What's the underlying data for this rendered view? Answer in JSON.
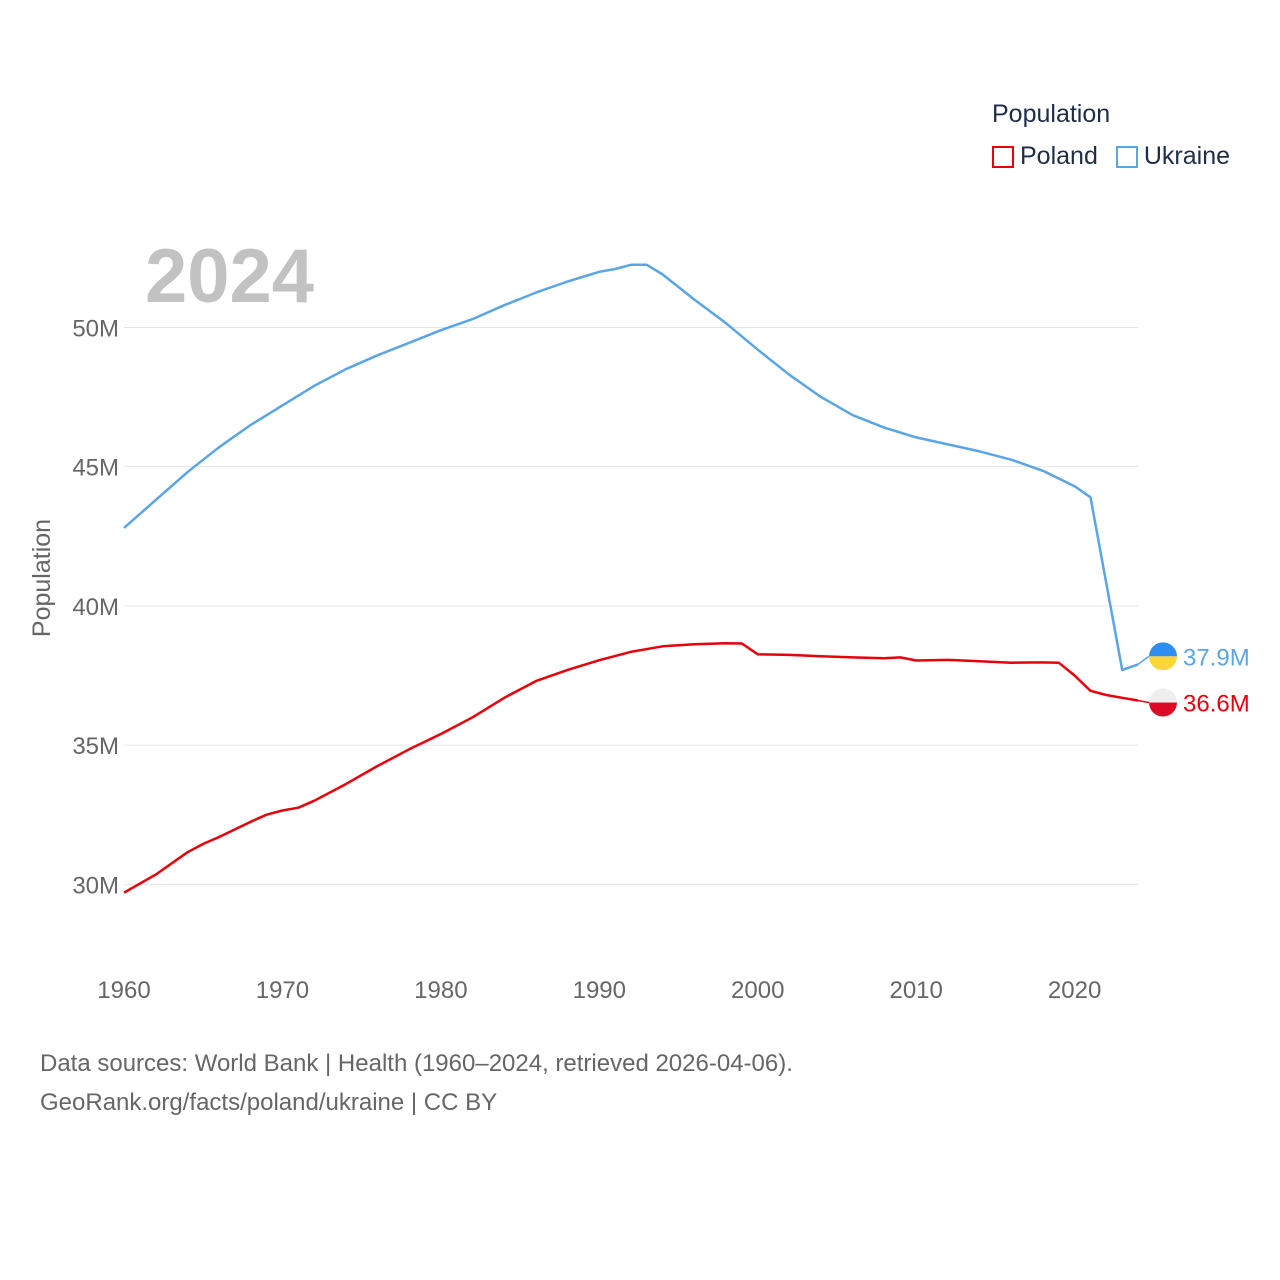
{
  "legend": {
    "title": "Population",
    "items": [
      {
        "label": "Poland",
        "color": "#e8000b"
      },
      {
        "label": "Ukraine",
        "color": "#5aa4e8"
      }
    ]
  },
  "footer": {
    "line1": "Data sources: World Bank | Health (1960–2024, retrieved 2026-04-06).",
    "line2": "GeoRank.org/facts/poland/ukraine | CC BY"
  },
  "chart_data": {
    "type": "line",
    "title": "",
    "year_label": "2024",
    "xlabel": "",
    "ylabel": "Population",
    "xlim": [
      1960,
      2024
    ],
    "ylim": [
      28000000,
      53500000
    ],
    "x_ticks": [
      1960,
      1970,
      1980,
      1990,
      2000,
      2010,
      2020
    ],
    "y_ticks": [
      {
        "value": 30000000,
        "label": "30M"
      },
      {
        "value": 35000000,
        "label": "35M"
      },
      {
        "value": 40000000,
        "label": "40M"
      },
      {
        "value": 45000000,
        "label": "45M"
      },
      {
        "value": 50000000,
        "label": "50M"
      }
    ],
    "grid": true,
    "series": [
      {
        "name": "Ukraine",
        "color": "#5aa4e8",
        "end_label": "37.9M",
        "flag_colors": [
          "#2f8cf0",
          "#ffd63a"
        ],
        "points": [
          [
            1960,
            42800000
          ],
          [
            1962,
            43800000
          ],
          [
            1964,
            44800000
          ],
          [
            1966,
            45700000
          ],
          [
            1968,
            46500000
          ],
          [
            1970,
            47200000
          ],
          [
            1972,
            47900000
          ],
          [
            1974,
            48500000
          ],
          [
            1976,
            49000000
          ],
          [
            1978,
            49450000
          ],
          [
            1980,
            49900000
          ],
          [
            1982,
            50300000
          ],
          [
            1984,
            50800000
          ],
          [
            1986,
            51250000
          ],
          [
            1988,
            51650000
          ],
          [
            1990,
            52000000
          ],
          [
            1991,
            52100000
          ],
          [
            1992,
            52250000
          ],
          [
            1993,
            52250000
          ],
          [
            1994,
            51900000
          ],
          [
            1996,
            51000000
          ],
          [
            1998,
            50150000
          ],
          [
            2000,
            49200000
          ],
          [
            2002,
            48300000
          ],
          [
            2004,
            47500000
          ],
          [
            2006,
            46850000
          ],
          [
            2008,
            46400000
          ],
          [
            2010,
            46050000
          ],
          [
            2012,
            45800000
          ],
          [
            2014,
            45550000
          ],
          [
            2016,
            45250000
          ],
          [
            2018,
            44850000
          ],
          [
            2020,
            44300000
          ],
          [
            2021,
            43900000
          ],
          [
            2023,
            37700000
          ],
          [
            2024,
            37900000
          ]
        ]
      },
      {
        "name": "Poland",
        "color": "#e8000b",
        "end_label": "36.6M",
        "flag_colors": [
          "#eeeeee",
          "#dc0a26"
        ],
        "points": [
          [
            1960,
            29700000
          ],
          [
            1962,
            30350000
          ],
          [
            1964,
            31150000
          ],
          [
            1965,
            31450000
          ],
          [
            1966,
            31700000
          ],
          [
            1968,
            32250000
          ],
          [
            1969,
            32500000
          ],
          [
            1970,
            32650000
          ],
          [
            1971,
            32750000
          ],
          [
            1972,
            33000000
          ],
          [
            1974,
            33600000
          ],
          [
            1976,
            34250000
          ],
          [
            1978,
            34850000
          ],
          [
            1980,
            35400000
          ],
          [
            1982,
            36000000
          ],
          [
            1984,
            36700000
          ],
          [
            1986,
            37300000
          ],
          [
            1988,
            37700000
          ],
          [
            1990,
            38050000
          ],
          [
            1992,
            38350000
          ],
          [
            1994,
            38550000
          ],
          [
            1996,
            38620000
          ],
          [
            1998,
            38660000
          ],
          [
            1999,
            38650000
          ],
          [
            2000,
            38260000
          ],
          [
            2002,
            38240000
          ],
          [
            2004,
            38190000
          ],
          [
            2006,
            38150000
          ],
          [
            2008,
            38120000
          ],
          [
            2009,
            38150000
          ],
          [
            2010,
            38040000
          ],
          [
            2012,
            38060000
          ],
          [
            2014,
            38010000
          ],
          [
            2016,
            37960000
          ],
          [
            2018,
            37970000
          ],
          [
            2019,
            37960000
          ],
          [
            2020,
            37500000
          ],
          [
            2021,
            36950000
          ],
          [
            2022,
            36800000
          ],
          [
            2023,
            36700000
          ],
          [
            2024,
            36600000
          ]
        ]
      }
    ]
  }
}
